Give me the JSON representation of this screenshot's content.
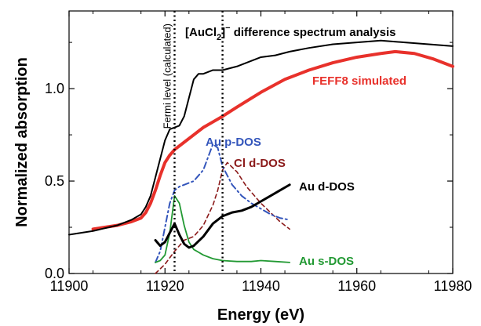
{
  "chart_data": {
    "type": "line",
    "title": "",
    "xlabel": "Energy (eV)",
    "ylabel": "Normalized absorption",
    "xlim": [
      11900,
      11980
    ],
    "ylim": [
      0,
      1.42
    ],
    "x_ticks": [
      "11900",
      "11920",
      "11940",
      "11960",
      "11980"
    ],
    "y_ticks": [
      "0.0",
      "0.5",
      "1.0"
    ],
    "y_tick_values": [
      0.0,
      0.5,
      1.0
    ],
    "x_tick_values": [
      11900,
      11920,
      11940,
      11960,
      11980
    ],
    "grid": false,
    "vertical_markers": [
      {
        "x": 11922,
        "label": "Fermi level (calculated)",
        "style": "dotted"
      },
      {
        "x": 11932,
        "label": "",
        "style": "dotted"
      }
    ],
    "annotation": {
      "prefix": "[AuCl",
      "subscript": "2",
      "suffix": "]",
      "superscript": "−",
      "text": " difference spectrum analysis"
    },
    "series": [
      {
        "name": "",
        "color": "#000000",
        "style": "solid",
        "x": [
          11900,
          11905,
          11910,
          11913,
          11915,
          11916,
          11917,
          11918,
          11919,
          11920,
          11921,
          11922,
          11923,
          11924,
          11925,
          11926,
          11927,
          11928,
          11930,
          11932,
          11935,
          11938,
          11940,
          11943,
          11946,
          11950,
          11955,
          11960,
          11965,
          11970,
          11975,
          11980
        ],
        "y": [
          0.21,
          0.23,
          0.26,
          0.29,
          0.32,
          0.36,
          0.42,
          0.52,
          0.62,
          0.72,
          0.78,
          0.79,
          0.8,
          0.85,
          0.95,
          1.05,
          1.08,
          1.08,
          1.1,
          1.1,
          1.12,
          1.15,
          1.17,
          1.18,
          1.2,
          1.22,
          1.24,
          1.25,
          1.26,
          1.25,
          1.24,
          1.23
        ]
      },
      {
        "name": "FEFF8 simulated",
        "color": "#e8312b",
        "style": "solid",
        "x": [
          11905,
          11910,
          11913,
          11915,
          11916,
          11917,
          11918,
          11919,
          11920,
          11921,
          11922,
          11924,
          11926,
          11928,
          11930,
          11932,
          11935,
          11940,
          11945,
          11950,
          11955,
          11960,
          11965,
          11968,
          11972,
          11976,
          11980
        ],
        "y": [
          0.24,
          0.26,
          0.28,
          0.3,
          0.33,
          0.38,
          0.45,
          0.53,
          0.6,
          0.64,
          0.67,
          0.71,
          0.75,
          0.79,
          0.82,
          0.85,
          0.9,
          0.98,
          1.05,
          1.1,
          1.14,
          1.17,
          1.19,
          1.2,
          1.19,
          1.16,
          1.12
        ]
      },
      {
        "name": "Au p-DOS",
        "color": "#3355bb",
        "style": "dashdot",
        "x": [
          11918,
          11919,
          11920,
          11921,
          11922,
          11923,
          11924,
          11926,
          11928,
          11929,
          11930,
          11931,
          11932,
          11934,
          11936,
          11938,
          11940,
          11942,
          11944,
          11946
        ],
        "y": [
          0.06,
          0.12,
          0.25,
          0.38,
          0.45,
          0.47,
          0.48,
          0.5,
          0.56,
          0.63,
          0.7,
          0.68,
          0.58,
          0.48,
          0.42,
          0.38,
          0.35,
          0.32,
          0.3,
          0.29
        ]
      },
      {
        "name": "Cl d-DOS",
        "color": "#8b1a1a",
        "style": "dashed",
        "x": [
          11918,
          11920,
          11922,
          11924,
          11926,
          11928,
          11930,
          11931,
          11932,
          11933,
          11935,
          11937,
          11940,
          11942,
          11944,
          11946
        ],
        "y": [
          0.0,
          0.05,
          0.12,
          0.18,
          0.2,
          0.26,
          0.37,
          0.45,
          0.56,
          0.6,
          0.55,
          0.47,
          0.38,
          0.33,
          0.28,
          0.24
        ]
      },
      {
        "name": "Au d-DOS",
        "color": "#000000",
        "style": "solid",
        "x": [
          11918,
          11919,
          11920,
          11921,
          11922,
          11923,
          11924,
          11925,
          11926,
          11928,
          11930,
          11932,
          11934,
          11936,
          11938,
          11940,
          11942,
          11944,
          11946
        ],
        "y": [
          0.18,
          0.15,
          0.17,
          0.22,
          0.27,
          0.21,
          0.16,
          0.14,
          0.15,
          0.2,
          0.27,
          0.31,
          0.33,
          0.34,
          0.36,
          0.39,
          0.42,
          0.45,
          0.48
        ]
      },
      {
        "name": "Au s-DOS",
        "color": "#229933",
        "style": "solid",
        "x": [
          11918,
          11919,
          11920,
          11921,
          11922,
          11923,
          11924,
          11925,
          11926,
          11928,
          11930,
          11932,
          11935,
          11938,
          11940,
          11943,
          11946
        ],
        "y": [
          0.06,
          0.07,
          0.1,
          0.22,
          0.42,
          0.38,
          0.26,
          0.17,
          0.13,
          0.1,
          0.08,
          0.07,
          0.065,
          0.065,
          0.07,
          0.065,
          0.06
        ]
      }
    ]
  }
}
